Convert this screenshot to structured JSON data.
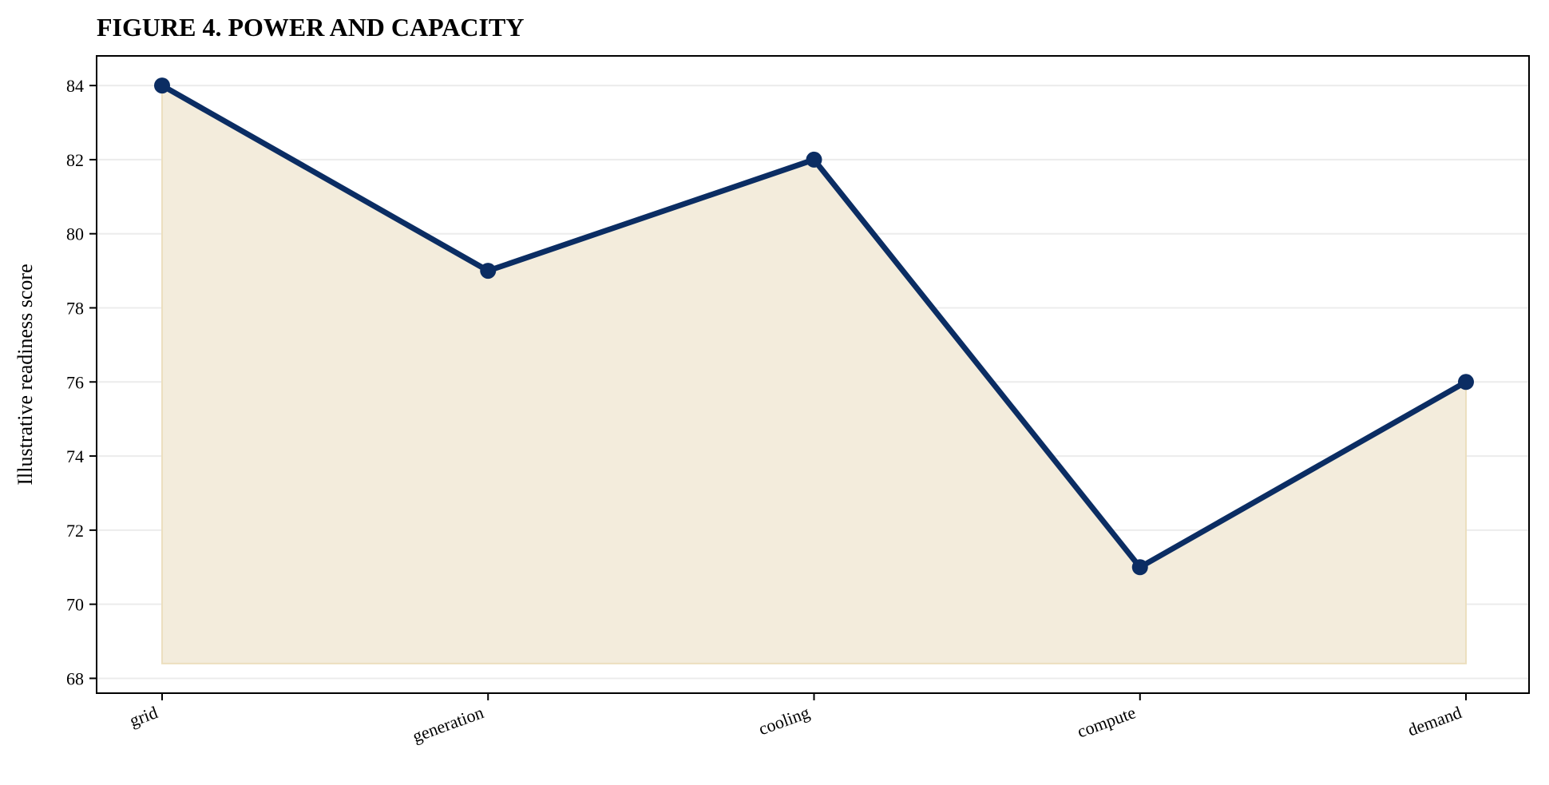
{
  "chart_data": {
    "type": "area",
    "title": "FIGURE 4. POWER AND CAPACITY",
    "xlabel": "",
    "ylabel": "Illustrative readiness score",
    "categories": [
      "grid",
      "generation",
      "cooling",
      "compute",
      "demand"
    ],
    "series": [
      {
        "values": [
          84,
          79,
          82,
          71,
          76
        ]
      }
    ],
    "ylim": [
      67.6,
      84.8
    ],
    "yticks": [
      68,
      70,
      72,
      74,
      76,
      78,
      80,
      82,
      84
    ],
    "fill_baseline": 68.4,
    "grid": "horizontal",
    "legend": "none",
    "colors": {
      "line": "#0b2d63",
      "fill": "#f3ecdc",
      "fill_edge": "#ecdfbf",
      "grid": "#ececec",
      "axis": "#000000"
    }
  }
}
